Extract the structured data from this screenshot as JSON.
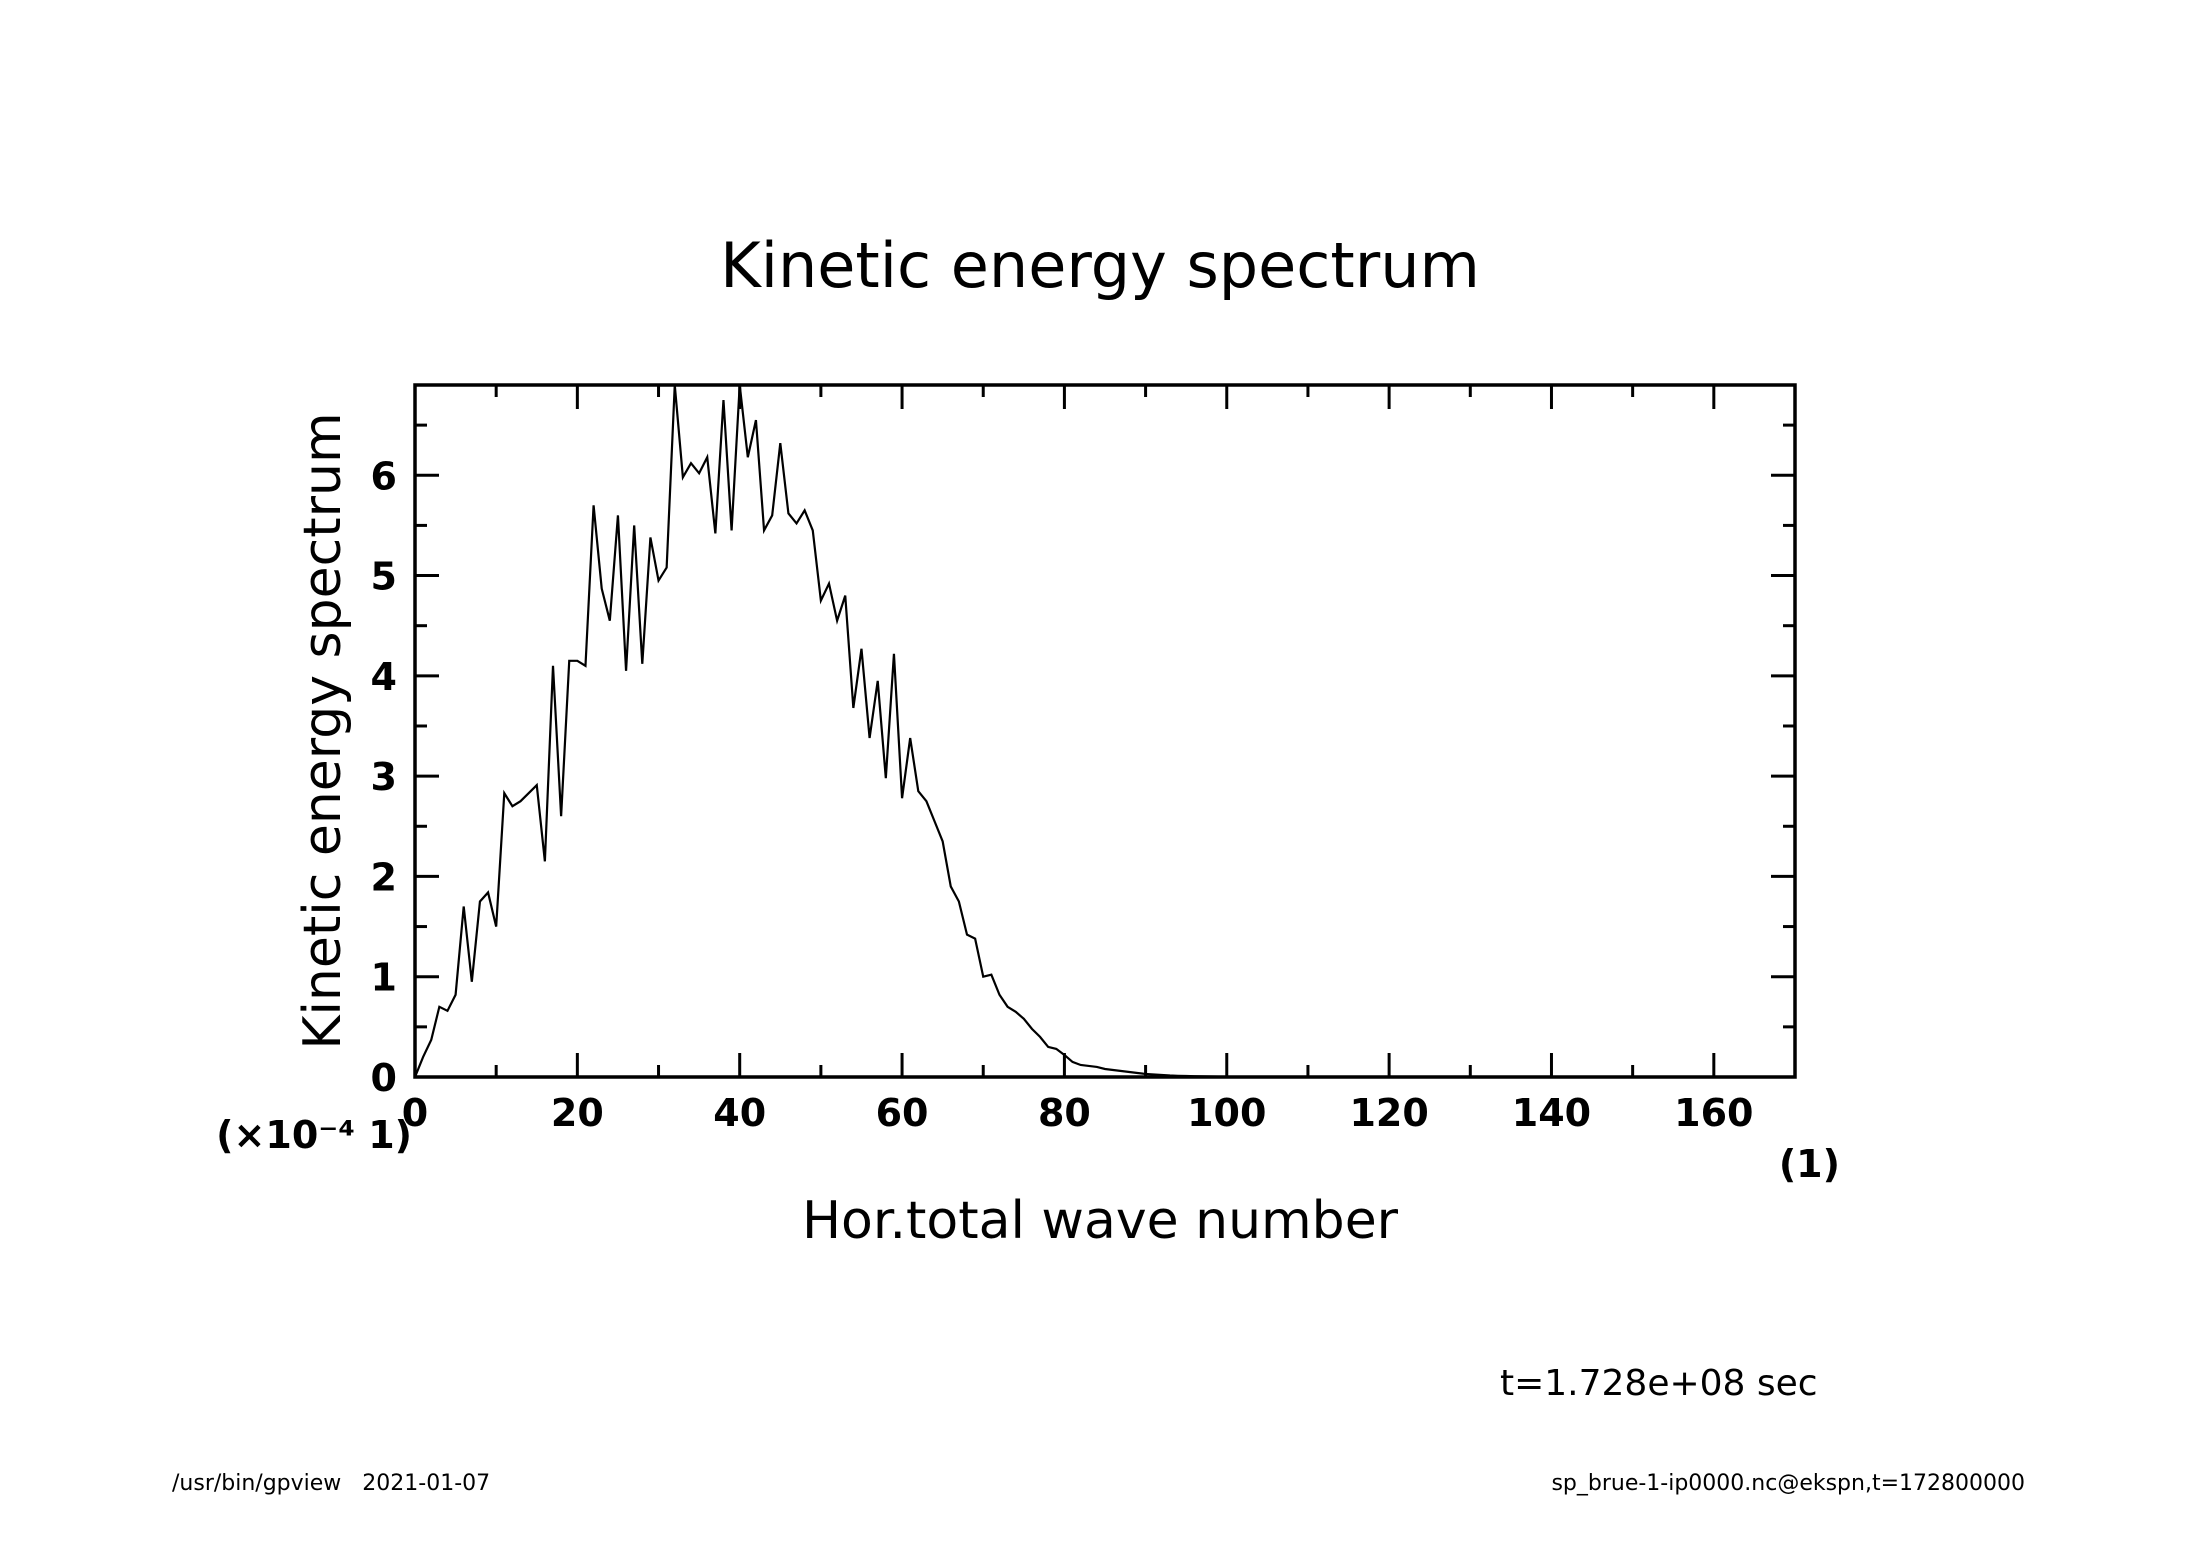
{
  "chart_data": {
    "type": "line",
    "title": "Kinetic energy spectrum",
    "xlabel": "Hor.total wave number",
    "ylabel": "Kinetic energy spectrum",
    "x_unit": "(1)",
    "y_unit": "(×10⁻⁴ 1)",
    "xlim": [
      0,
      170
    ],
    "ylim": [
      0,
      6.9
    ],
    "x_ticks": [
      0,
      20,
      40,
      60,
      80,
      100,
      120,
      140,
      160
    ],
    "y_ticks": [
      0,
      1,
      2,
      3,
      4,
      5,
      6
    ],
    "grid": false,
    "series": [
      {
        "x": [
          0,
          1,
          2,
          3,
          4,
          5,
          6,
          7,
          8,
          9,
          10,
          11,
          12,
          13,
          14,
          15,
          16,
          17,
          18,
          19,
          20,
          21,
          22,
          23,
          24,
          25,
          26,
          27,
          28,
          29,
          30,
          31,
          32,
          33,
          34,
          35,
          36,
          37,
          38,
          39,
          40,
          41,
          42,
          43,
          44,
          45,
          46,
          47,
          48,
          49,
          50,
          51,
          52,
          53,
          54,
          55,
          56,
          57,
          58,
          59,
          60,
          61,
          62,
          63,
          64,
          65,
          66,
          67,
          68,
          69,
          70,
          71,
          72,
          73,
          74,
          75,
          76,
          77,
          78,
          79,
          80,
          81,
          82,
          83,
          84,
          85,
          86,
          87,
          88,
          89,
          90,
          91,
          92,
          93,
          94,
          95,
          96,
          97,
          98,
          99,
          100,
          110,
          120,
          130,
          140,
          150,
          160,
          170
        ],
        "y": [
          0.0,
          0.2,
          0.37,
          0.7,
          0.66,
          0.82,
          1.7,
          0.95,
          1.75,
          1.84,
          1.5,
          2.83,
          2.7,
          2.75,
          2.83,
          2.91,
          2.15,
          4.1,
          2.6,
          4.15,
          4.15,
          4.1,
          5.7,
          4.87,
          4.55,
          5.6,
          4.05,
          5.5,
          4.12,
          5.38,
          4.95,
          5.08,
          6.9,
          5.98,
          6.12,
          6.02,
          6.18,
          5.42,
          6.75,
          5.45,
          6.9,
          6.18,
          6.55,
          5.45,
          5.6,
          6.32,
          5.62,
          5.52,
          5.65,
          5.45,
          4.75,
          4.92,
          4.55,
          4.8,
          3.68,
          4.27,
          3.38,
          3.95,
          2.98,
          4.22,
          2.78,
          3.38,
          2.85,
          2.75,
          2.55,
          2.35,
          1.9,
          1.75,
          1.42,
          1.38,
          1.0,
          1.02,
          0.82,
          0.7,
          0.65,
          0.58,
          0.48,
          0.4,
          0.3,
          0.28,
          0.22,
          0.15,
          0.12,
          0.11,
          0.1,
          0.08,
          0.07,
          0.06,
          0.05,
          0.04,
          0.03,
          0.025,
          0.02,
          0.015,
          0.012,
          0.01,
          0.008,
          0.006,
          0.005,
          0.004,
          0.003,
          0.001,
          0.0005,
          0.0002,
          0.0001,
          0.0,
          0.0,
          0.0
        ]
      }
    ],
    "annotation": "t=1.728e+08 sec"
  },
  "footer": {
    "left": "/usr/bin/gpview   2021-01-07",
    "right": "sp_brue-1-ip0000.nc@ekspn,t=172800000"
  }
}
